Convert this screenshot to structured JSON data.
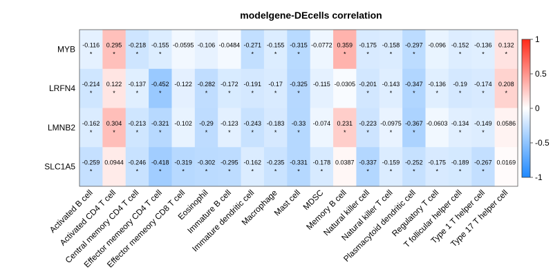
{
  "chart_data": {
    "type": "heatmap",
    "title": "modelgene-DEcells correlation",
    "rows": [
      "MYB",
      "LRFN4",
      "LMNB2",
      "SLC1A5"
    ],
    "columns": [
      "Activated B cell",
      "Activated CD4 T cell",
      "Central memory CD4 T cell",
      "Effector memeory CD4 T cell",
      "Effector memeory CD8 T cell",
      "Eosinophil",
      "Immature  B cell",
      "Immature dendritic cell",
      "Macrophage",
      "Mast cell",
      "MDSC",
      "Memory B cell",
      "Natural killer cell",
      "Natural killer T cell",
      "Plasmacytoid dendritic cell",
      "Regulatory T cell",
      "T follicular helper cell",
      "Type 1 T helper cell",
      "Type 17 T helper cell"
    ],
    "values": [
      [
        -0.116,
        0.295,
        -0.218,
        -0.155,
        -0.0595,
        -0.106,
        -0.0484,
        -0.271,
        -0.155,
        -0.315,
        -0.0772,
        0.359,
        -0.175,
        -0.158,
        -0.297,
        -0.096,
        -0.152,
        -0.136,
        0.132
      ],
      [
        -0.214,
        0.122,
        -0.137,
        -0.452,
        -0.122,
        -0.282,
        -0.172,
        -0.191,
        -0.17,
        -0.325,
        -0.115,
        -0.0305,
        -0.201,
        -0.143,
        -0.347,
        -0.136,
        -0.19,
        -0.174,
        0.208
      ],
      [
        -0.162,
        0.304,
        -0.213,
        -0.321,
        -0.102,
        -0.29,
        -0.123,
        -0.243,
        -0.183,
        -0.33,
        -0.074,
        0.231,
        -0.223,
        -0.0975,
        -0.367,
        -0.0603,
        -0.134,
        -0.149,
        0.0586
      ],
      [
        -0.259,
        0.0944,
        -0.246,
        -0.418,
        -0.319,
        -0.302,
        -0.295,
        -0.162,
        -0.235,
        -0.331,
        -0.178,
        0.0387,
        -0.337,
        -0.159,
        -0.252,
        -0.175,
        -0.189,
        -0.267,
        0.0169
      ]
    ],
    "labels": [
      [
        "-0.116",
        "0.295",
        "-0.218",
        "-0.155",
        "-0.0595",
        "-0.106",
        "-0.0484",
        "-0.271",
        "-0.155",
        "-0.315",
        "-0.0772",
        "0.359",
        "-0.175",
        "-0.158",
        "-0.297",
        "-0.096",
        "-0.152",
        "-0.136",
        "0.132"
      ],
      [
        "-0.214",
        "0.122",
        "-0.137",
        "-0.452",
        "-0.122",
        "-0.282",
        "-0.172",
        "-0.191",
        "-0.17",
        "-0.325",
        "-0.115",
        "-0.0305",
        "-0.201",
        "-0.143",
        "-0.347",
        "-0.136",
        "-0.19",
        "-0.174",
        "0.208"
      ],
      [
        "-0.162",
        "0.304",
        "-0.213",
        "-0.321",
        "-0.102",
        "-0.29",
        "-0.123",
        "-0.243",
        "-0.183",
        "-0.33",
        "-0.074",
        "0.231",
        "-0.223",
        "-0.0975",
        "-0.367",
        "-0.0603",
        "-0.134",
        "-0.149",
        "0.0586"
      ],
      [
        "-0.259",
        "0.0944",
        "-0.246",
        "-0.418",
        "-0.319",
        "-0.302",
        "-0.295",
        "-0.162",
        "-0.235",
        "-0.331",
        "-0.178",
        "0.0387",
        "-0.337",
        "-0.159",
        "-0.252",
        "-0.175",
        "-0.189",
        "-0.267",
        "0.0169"
      ]
    ],
    "significant": [
      [
        true,
        true,
        true,
        true,
        false,
        false,
        false,
        true,
        true,
        true,
        false,
        true,
        true,
        true,
        true,
        false,
        true,
        true,
        true
      ],
      [
        true,
        true,
        true,
        true,
        false,
        true,
        true,
        true,
        true,
        true,
        false,
        false,
        true,
        true,
        true,
        true,
        true,
        true,
        true
      ],
      [
        true,
        true,
        true,
        true,
        false,
        true,
        true,
        true,
        true,
        true,
        false,
        true,
        true,
        true,
        true,
        false,
        true,
        true,
        false
      ],
      [
        true,
        false,
        true,
        true,
        true,
        true,
        true,
        true,
        true,
        true,
        true,
        false,
        true,
        true,
        true,
        true,
        true,
        true,
        false
      ]
    ],
    "significance_mark": "*",
    "color_scale": {
      "min": -1,
      "max": 1,
      "ticks": [
        "1",
        "0.5",
        "0",
        "-0.5",
        "-1"
      ],
      "low_color": "#1e88ff",
      "mid_color": "#ffffff",
      "high_color": "#ff2a1a"
    }
  }
}
